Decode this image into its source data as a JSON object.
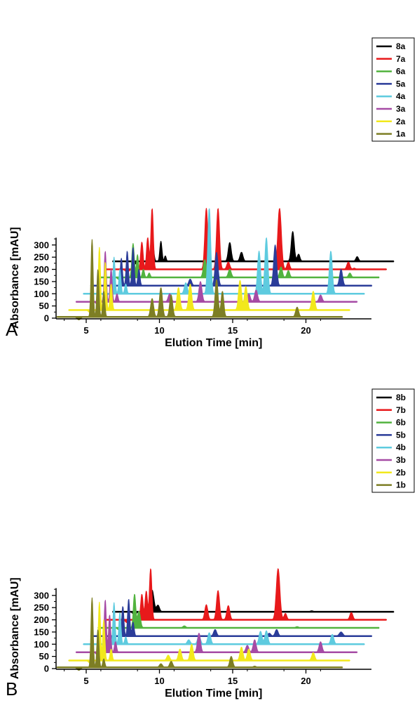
{
  "chart_data": [
    {
      "type": "line",
      "panel_label": "A",
      "xlabel": "Elution Time [min]",
      "ylabel": "Absorbance [mAU]",
      "xticks": [
        5,
        10,
        15,
        20
      ],
      "yticks": [
        0,
        50,
        100,
        150,
        200,
        250,
        300
      ],
      "xlim": [
        3,
        26
      ],
      "ylim": [
        0,
        330
      ],
      "legend_position": "top-right",
      "series": [
        {
          "name": "8a",
          "color": "#000000",
          "baseline": 233,
          "x_start": 6.8,
          "x_end": 26.0,
          "peaks": [
            [
              9.5,
              335,
              0.09
            ],
            [
              10.1,
              315,
              0.07
            ],
            [
              10.4,
              255,
              0.06
            ],
            [
              14.8,
              310,
              0.1
            ],
            [
              15.6,
              270,
              0.1
            ],
            [
              19.1,
              355,
              0.1
            ],
            [
              19.5,
              262,
              0.09
            ],
            [
              23.5,
              252,
              0.09
            ]
          ]
        },
        {
          "name": "7a",
          "color": "#e8191b",
          "baseline": 200,
          "x_start": 6.3,
          "x_end": 25.5,
          "peaks": [
            [
              8.8,
              312,
              0.08
            ],
            [
              9.2,
              330,
              0.08
            ],
            [
              9.5,
              450,
              0.08
            ],
            [
              13.2,
              450,
              0.1
            ],
            [
              14.0,
              450,
              0.1
            ],
            [
              14.7,
              230,
              0.1
            ],
            [
              18.2,
              450,
              0.12
            ],
            [
              18.8,
              230,
              0.09
            ],
            [
              22.9,
              230,
              0.1
            ],
            [
              23.3,
              205,
              0.08
            ]
          ]
        },
        {
          "name": "6a",
          "color": "#52b33f",
          "baseline": 167,
          "x_start": 5.8,
          "x_end": 25.0,
          "peaks": [
            [
              8.2,
              306,
              0.08
            ],
            [
              8.5,
              260,
              0.07
            ],
            [
              8.9,
              200,
              0.07
            ],
            [
              9.3,
              185,
              0.07
            ],
            [
              13.1,
              240,
              0.1
            ],
            [
              14.8,
              200,
              0.1
            ],
            [
              18.3,
              210,
              0.09
            ],
            [
              18.8,
              195,
              0.09
            ],
            [
              23.0,
              185,
              0.09
            ]
          ]
        },
        {
          "name": "5a",
          "color": "#2b3c99",
          "baseline": 133,
          "x_start": 5.3,
          "x_end": 24.5,
          "peaks": [
            [
              7.4,
              245,
              0.07
            ],
            [
              7.8,
              275,
              0.07
            ],
            [
              8.2,
              290,
              0.07
            ],
            [
              8.6,
              200,
              0.07
            ],
            [
              12.1,
              160,
              0.1
            ],
            [
              13.9,
              270,
              0.1
            ],
            [
              17.9,
              300,
              0.1
            ],
            [
              22.4,
              200,
              0.1
            ]
          ]
        },
        {
          "name": "4a",
          "color": "#5ecbdf",
          "baseline": 100,
          "x_start": 4.8,
          "x_end": 24.0,
          "peaks": [
            [
              6.9,
              250,
              0.07
            ],
            [
              7.3,
              200,
              0.07
            ],
            [
              7.7,
              140,
              0.07
            ],
            [
              11.8,
              145,
              0.1
            ],
            [
              13.4,
              450,
              0.1
            ],
            [
              16.8,
              275,
              0.1
            ],
            [
              17.3,
              330,
              0.1
            ],
            [
              21.7,
              275,
              0.1
            ]
          ]
        },
        {
          "name": "3a",
          "color": "#a64ba5",
          "baseline": 67,
          "x_start": 4.3,
          "x_end": 23.5,
          "peaks": [
            [
              6.3,
              275,
              0.07
            ],
            [
              6.7,
              200,
              0.07
            ],
            [
              7.1,
              100,
              0.07
            ],
            [
              10.7,
              100,
              0.1
            ],
            [
              12.8,
              150,
              0.1
            ],
            [
              16.1,
              100,
              0.1
            ],
            [
              16.6,
              115,
              0.1
            ],
            [
              21.0,
              95,
              0.1
            ]
          ]
        },
        {
          "name": "2a",
          "color": "#f2e81c",
          "baseline": 33,
          "x_start": 3.8,
          "x_end": 23.0,
          "peaks": [
            [
              5.9,
              290,
              0.07
            ],
            [
              6.3,
              230,
              0.07
            ],
            [
              6.7,
              140,
              0.07
            ],
            [
              11.3,
              125,
              0.1
            ],
            [
              12.1,
              140,
              0.1
            ],
            [
              15.5,
              155,
              0.1
            ],
            [
              15.9,
              130,
              0.1
            ],
            [
              20.5,
              110,
              0.1
            ]
          ]
        },
        {
          "name": "1a",
          "color": "#7d7e24",
          "baseline": 5,
          "x_start": 3.0,
          "x_end": 22.5,
          "peaks": [
            [
              5.4,
              322,
              0.07
            ],
            [
              5.8,
              200,
              0.07
            ],
            [
              6.2,
              110,
              0.07
            ],
            [
              9.5,
              80,
              0.1
            ],
            [
              10.1,
              125,
              0.1
            ],
            [
              10.8,
              95,
              0.1
            ],
            [
              13.9,
              158,
              0.1
            ],
            [
              14.3,
              110,
              0.09
            ],
            [
              19.4,
              45,
              0.1
            ]
          ]
        }
      ]
    },
    {
      "type": "line",
      "panel_label": "B",
      "xlabel": "Elution Time [min]",
      "ylabel": "Absorbance [mAU]",
      "xticks": [
        5,
        10,
        15,
        20
      ],
      "yticks": [
        0,
        50,
        100,
        150,
        200,
        250,
        300
      ],
      "xlim": [
        3,
        26
      ],
      "ylim": [
        0,
        330
      ],
      "legend_position": "top-right",
      "series": [
        {
          "name": "8b",
          "color": "#000000",
          "baseline": 233,
          "x_start": 6.8,
          "x_end": 26.0,
          "peaks": [
            [
              9.5,
              322,
              0.12
            ],
            [
              9.9,
              260,
              0.1
            ],
            [
              20.4,
              237,
              0.1
            ]
          ]
        },
        {
          "name": "7b",
          "color": "#e8191b",
          "baseline": 200,
          "x_start": 6.3,
          "x_end": 25.5,
          "peaks": [
            [
              8.8,
              305,
              0.08
            ],
            [
              9.1,
              318,
              0.08
            ],
            [
              9.4,
              410,
              0.08
            ],
            [
              13.2,
              262,
              0.1
            ],
            [
              14.0,
              320,
              0.1
            ],
            [
              14.7,
              258,
              0.1
            ],
            [
              18.1,
              410,
              0.12
            ],
            [
              18.6,
              226,
              0.09
            ],
            [
              23.1,
              230,
              0.1
            ]
          ]
        },
        {
          "name": "6b",
          "color": "#52b33f",
          "baseline": 167,
          "x_start": 5.8,
          "x_end": 25.0,
          "peaks": [
            [
              8.3,
              305,
              0.08
            ],
            [
              8.6,
              235,
              0.1
            ],
            [
              11.7,
              175,
              0.1
            ],
            [
              19.4,
              172,
              0.1
            ]
          ]
        },
        {
          "name": "5b",
          "color": "#2b3c99",
          "baseline": 133,
          "x_start": 5.3,
          "x_end": 24.5,
          "peaks": [
            [
              7.5,
              255,
              0.07
            ],
            [
              7.9,
              285,
              0.07
            ],
            [
              8.2,
              190,
              0.07
            ],
            [
              13.8,
              160,
              0.1
            ],
            [
              17.5,
              145,
              0.1
            ],
            [
              18.0,
              160,
              0.1
            ],
            [
              22.4,
              150,
              0.12
            ]
          ]
        },
        {
          "name": "4b",
          "color": "#5ecbdf",
          "baseline": 100,
          "x_start": 4.8,
          "x_end": 24.0,
          "peaks": [
            [
              6.9,
              270,
              0.07
            ],
            [
              7.3,
              230,
              0.07
            ],
            [
              7.7,
              130,
              0.07
            ],
            [
              12.0,
              118,
              0.1
            ],
            [
              12.7,
              135,
              0.1
            ],
            [
              13.4,
              147,
              0.1
            ],
            [
              16.9,
              153,
              0.1
            ],
            [
              17.3,
              155,
              0.1
            ],
            [
              21.8,
              140,
              0.1
            ]
          ]
        },
        {
          "name": "3b",
          "color": "#a64ba5",
          "baseline": 67,
          "x_start": 4.3,
          "x_end": 23.5,
          "peaks": [
            [
              6.3,
              282,
              0.07
            ],
            [
              6.6,
              220,
              0.07
            ],
            [
              7.0,
              110,
              0.07
            ],
            [
              12.7,
              145,
              0.1
            ],
            [
              16.0,
              95,
              0.1
            ],
            [
              16.5,
              118,
              0.1
            ],
            [
              21.0,
              110,
              0.1
            ]
          ]
        },
        {
          "name": "2b",
          "color": "#f2e81c",
          "baseline": 33,
          "x_start": 3.8,
          "x_end": 23.0,
          "peaks": [
            [
              5.9,
              272,
              0.07
            ],
            [
              6.2,
              200,
              0.07
            ],
            [
              6.7,
              80,
              0.07
            ],
            [
              10.6,
              55,
              0.1
            ],
            [
              11.4,
              80,
              0.1
            ],
            [
              12.2,
              100,
              0.1
            ],
            [
              15.6,
              88,
              0.1
            ],
            [
              16.1,
              80,
              0.1
            ],
            [
              20.5,
              65,
              0.1
            ]
          ]
        },
        {
          "name": "1b",
          "color": "#7d7e24",
          "baseline": 5,
          "x_start": 3.0,
          "x_end": 22.5,
          "peaks": [
            [
              5.4,
              290,
              0.07
            ],
            [
              5.8,
              160,
              0.07
            ],
            [
              6.2,
              40,
              0.07
            ],
            [
              10.1,
              20,
              0.1
            ],
            [
              10.8,
              30,
              0.1
            ],
            [
              14.9,
              50,
              0.1
            ],
            [
              16.5,
              10,
              0.1
            ]
          ]
        }
      ]
    }
  ]
}
